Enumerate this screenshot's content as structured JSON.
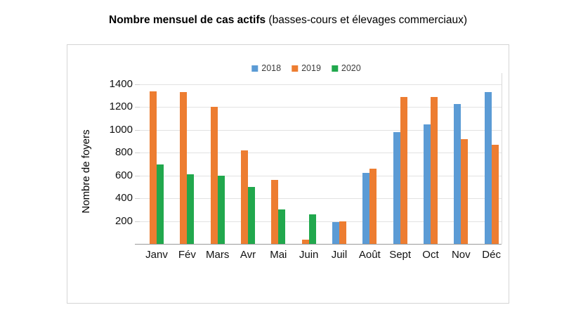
{
  "title": {
    "bold": "Nombre mensuel de cas actifs",
    "rest": " (basses-cours et élevages commerciaux)"
  },
  "chart_data": {
    "type": "bar",
    "title": "Nombre mensuel de cas actifs (basses-cours et élevages commerciaux)",
    "ylabel": "Nombre de foyers",
    "xlabel": "",
    "categories": [
      "Janv",
      "Fév",
      "Mars",
      "Avr",
      "Mai",
      "Juin",
      "Juil",
      "Août",
      "Sept",
      "Oct",
      "Nov",
      "Déc"
    ],
    "series": [
      {
        "name": "2018",
        "color": "#5B9BD5",
        "values": [
          null,
          null,
          null,
          null,
          null,
          null,
          190,
          620,
          980,
          1050,
          1230,
          1330
        ]
      },
      {
        "name": "2019",
        "color": "#ED7D31",
        "values": [
          1340,
          1330,
          1200,
          820,
          560,
          40,
          200,
          660,
          1290,
          1290,
          920,
          870
        ]
      },
      {
        "name": "2020",
        "color": "#21A84D",
        "values": [
          700,
          610,
          600,
          500,
          300,
          260,
          null,
          null,
          null,
          null,
          null,
          null
        ]
      }
    ],
    "ylim": [
      0,
      1400
    ],
    "ytick_step": 200,
    "ytick_labels": [
      "200",
      "400",
      "600",
      "800",
      "1000",
      "1200",
      "1400"
    ],
    "grid": true,
    "legend_position": "top-center",
    "colors": {
      "gridline": "#e2e2e2",
      "axis": "#9a9a9a",
      "text": "#111111"
    }
  }
}
